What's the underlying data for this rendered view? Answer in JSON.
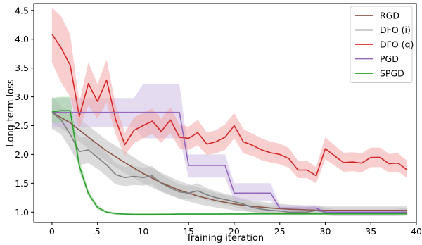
{
  "chart_data": {
    "type": "line",
    "title": "",
    "xlabel": "Training iteration",
    "ylabel": "Long-term loss",
    "xlim": [
      -2,
      40
    ],
    "ylim": [
      0.82,
      4.62
    ],
    "x_ticks": [
      "0",
      "5",
      "10",
      "15",
      "20",
      "25",
      "30",
      "35",
      "40"
    ],
    "y_ticks": [
      "1.0",
      "1.5",
      "2.0",
      "2.5",
      "3.0",
      "3.5",
      "4.0",
      "4.5"
    ],
    "grid": false,
    "legend_position": "top-right",
    "series": [
      {
        "name": "RGD",
        "color": "#8c564b",
        "band_color": "#bdbdbd",
        "x": [
          0,
          2,
          4,
          6,
          8,
          10,
          12,
          14,
          16,
          18,
          20,
          22,
          24,
          26,
          28,
          30,
          32,
          34,
          36,
          38,
          39
        ],
        "values": [
          2.73,
          2.55,
          2.3,
          2.06,
          1.86,
          1.67,
          1.51,
          1.38,
          1.28,
          1.2,
          1.14,
          1.1,
          1.07,
          1.05,
          1.04,
          1.03,
          1.03,
          1.03,
          1.03,
          1.03,
          1.03
        ],
        "lower": [
          2.55,
          2.35,
          2.1,
          1.88,
          1.68,
          1.5,
          1.35,
          1.23,
          1.14,
          1.08,
          1.03,
          1.0,
          0.98,
          0.97,
          0.96,
          0.96,
          0.96,
          0.96,
          0.96,
          0.96,
          0.96
        ],
        "upper": [
          2.9,
          2.75,
          2.5,
          2.25,
          2.05,
          1.85,
          1.68,
          1.54,
          1.43,
          1.33,
          1.26,
          1.2,
          1.16,
          1.13,
          1.11,
          1.1,
          1.1,
          1.1,
          1.1,
          1.1,
          1.1
        ]
      },
      {
        "name": "DFO (i)",
        "color": "#7f7f7f",
        "band_color": "#bdbdbd",
        "x": [
          0,
          1,
          2,
          3,
          4,
          5,
          6,
          7,
          8,
          9,
          10,
          11,
          12,
          13,
          14,
          15,
          16,
          17,
          18,
          19,
          20,
          21,
          22,
          23,
          24,
          25,
          26,
          27,
          28,
          29,
          30,
          31,
          32,
          33,
          34,
          35,
          36,
          37,
          38,
          39
        ],
        "values": [
          2.73,
          2.6,
          2.35,
          2.05,
          2.08,
          1.95,
          1.82,
          1.65,
          1.6,
          1.62,
          1.6,
          1.63,
          1.5,
          1.42,
          1.35,
          1.33,
          1.37,
          1.3,
          1.25,
          1.22,
          1.18,
          1.14,
          1.08,
          1.05,
          1.03,
          1.02,
          1.0,
          1.0,
          1.0,
          1.03,
          1.0,
          0.98,
          0.98,
          0.98,
          0.98,
          0.98,
          0.98,
          0.98,
          0.98,
          0.99
        ],
        "lower": [
          2.45,
          2.35,
          2.1,
          1.82,
          1.85,
          1.75,
          1.62,
          1.48,
          1.45,
          1.47,
          1.46,
          1.48,
          1.36,
          1.3,
          1.24,
          1.22,
          1.25,
          1.2,
          1.16,
          1.13,
          1.09,
          1.05,
          1.0,
          0.98,
          0.96,
          0.95,
          0.94,
          0.94,
          0.94,
          0.96,
          0.94,
          0.93,
          0.93,
          0.93,
          0.93,
          0.93,
          0.93,
          0.93,
          0.93,
          0.94
        ],
        "upper": [
          3.0,
          2.85,
          2.6,
          2.3,
          2.3,
          2.18,
          2.03,
          1.85,
          1.78,
          1.8,
          1.77,
          1.8,
          1.66,
          1.56,
          1.48,
          1.45,
          1.5,
          1.42,
          1.36,
          1.32,
          1.28,
          1.23,
          1.17,
          1.13,
          1.11,
          1.1,
          1.08,
          1.08,
          1.08,
          1.11,
          1.08,
          1.05,
          1.05,
          1.05,
          1.05,
          1.05,
          1.05,
          1.05,
          1.06,
          1.07
        ]
      },
      {
        "name": "DFO (q)",
        "color": "#d62728",
        "band_color": "#f2a5a5",
        "x": [
          0,
          1,
          2,
          3,
          4,
          5,
          6,
          7,
          8,
          9,
          10,
          11,
          12,
          13,
          14,
          15,
          16,
          17,
          18,
          19,
          20,
          21,
          22,
          23,
          24,
          25,
          26,
          27,
          28,
          29,
          30,
          31,
          32,
          33,
          34,
          35,
          36,
          37,
          38,
          39
        ],
        "values": [
          4.09,
          3.85,
          3.55,
          2.66,
          3.23,
          2.92,
          3.29,
          2.6,
          2.17,
          2.42,
          2.5,
          2.58,
          2.4,
          2.6,
          2.3,
          2.28,
          2.38,
          2.18,
          2.22,
          2.3,
          2.5,
          2.22,
          2.16,
          2.08,
          2.03,
          2.0,
          1.93,
          1.73,
          1.73,
          1.63,
          2.1,
          1.98,
          1.86,
          1.87,
          1.85,
          1.95,
          1.95,
          1.84,
          1.85,
          1.73
        ],
        "lower": [
          3.6,
          3.25,
          3.0,
          2.45,
          2.85,
          2.62,
          2.9,
          2.35,
          1.98,
          2.2,
          2.28,
          2.36,
          2.2,
          2.38,
          2.1,
          2.08,
          2.16,
          1.99,
          2.02,
          2.08,
          2.28,
          2.02,
          1.98,
          1.9,
          1.86,
          1.83,
          1.77,
          1.59,
          1.59,
          1.5,
          1.92,
          1.81,
          1.7,
          1.71,
          1.69,
          1.78,
          1.78,
          1.69,
          1.7,
          1.59
        ],
        "upper": [
          4.55,
          4.4,
          4.08,
          2.9,
          3.6,
          3.22,
          3.65,
          2.85,
          2.38,
          2.64,
          2.72,
          2.8,
          2.62,
          2.82,
          2.52,
          2.48,
          2.6,
          2.38,
          2.42,
          2.52,
          2.72,
          2.44,
          2.36,
          2.28,
          2.22,
          2.19,
          2.11,
          1.89,
          1.89,
          1.78,
          2.3,
          2.16,
          2.03,
          2.04,
          2.02,
          2.12,
          2.12,
          2.01,
          2.02,
          1.89
        ]
      },
      {
        "name": "PGD",
        "color": "#9467bd",
        "band_color": "#cfbde6",
        "x": [
          0,
          1,
          2,
          3,
          4,
          5,
          6,
          7,
          8,
          9,
          10,
          11,
          12,
          13,
          14,
          15,
          16,
          17,
          18,
          19,
          20,
          21,
          22,
          23,
          24,
          25,
          26,
          27,
          28,
          29,
          30,
          31,
          32,
          33,
          34,
          35,
          36,
          37,
          38,
          39
        ],
        "values": [
          2.73,
          2.73,
          2.73,
          2.73,
          2.73,
          2.73,
          2.73,
          2.73,
          2.73,
          2.73,
          2.73,
          2.73,
          2.73,
          2.73,
          2.73,
          1.81,
          1.81,
          1.81,
          1.81,
          1.81,
          1.33,
          1.33,
          1.33,
          1.33,
          1.33,
          1.07,
          1.07,
          1.07,
          1.07,
          1.07,
          1.0,
          1.0,
          1.0,
          1.0,
          1.0,
          1.0,
          1.0,
          1.0,
          1.0,
          1.0
        ],
        "lower": [
          2.48,
          2.48,
          2.48,
          2.48,
          2.48,
          2.48,
          2.48,
          2.48,
          2.48,
          2.48,
          2.28,
          2.28,
          2.28,
          2.28,
          2.28,
          1.6,
          1.6,
          1.6,
          1.6,
          1.6,
          1.2,
          1.2,
          1.2,
          1.2,
          1.2,
          1.01,
          1.01,
          1.01,
          1.01,
          1.01,
          0.96,
          0.96,
          0.96,
          0.96,
          0.96,
          0.96,
          0.96,
          0.96,
          0.96,
          0.96
        ],
        "upper": [
          2.98,
          2.98,
          2.98,
          2.98,
          2.98,
          2.98,
          2.98,
          2.98,
          2.98,
          2.98,
          3.22,
          3.22,
          3.22,
          3.22,
          3.22,
          2.0,
          2.0,
          2.0,
          2.0,
          2.0,
          1.5,
          1.5,
          1.5,
          1.5,
          1.5,
          1.12,
          1.12,
          1.12,
          1.12,
          1.12,
          1.04,
          1.04,
          1.04,
          1.04,
          1.04,
          1.04,
          1.04,
          1.04,
          1.04,
          1.04
        ]
      },
      {
        "name": "SPGD",
        "color": "#2ca02c",
        "band_color": "#9fd49f",
        "x": [
          0,
          1,
          2,
          3,
          4,
          5,
          6,
          7,
          8,
          9,
          10,
          11,
          12,
          13,
          14,
          15,
          16,
          17,
          18,
          19,
          20,
          21,
          22,
          23,
          24,
          25,
          26,
          27,
          28,
          29,
          30,
          31,
          32,
          33,
          34,
          35,
          36,
          37,
          38,
          39
        ],
        "values": [
          2.74,
          2.76,
          2.76,
          1.8,
          1.32,
          1.08,
          1.0,
          0.975,
          0.965,
          0.96,
          0.96,
          0.96,
          0.962,
          0.962,
          0.965,
          0.965,
          0.965,
          0.966,
          0.966,
          0.968,
          0.968,
          0.968,
          0.97,
          0.97,
          0.97,
          0.97,
          0.97,
          0.97,
          0.97,
          0.97,
          0.97,
          0.97,
          0.97,
          0.97,
          0.97,
          0.97,
          0.97,
          0.97,
          0.97,
          0.97
        ],
        "lower": [
          2.55,
          2.55,
          2.58,
          1.7,
          1.27,
          1.05,
          0.98,
          0.955,
          0.945,
          0.94,
          0.94,
          0.94,
          0.942,
          0.942,
          0.945,
          0.945,
          0.945,
          0.946,
          0.946,
          0.948,
          0.948,
          0.948,
          0.95,
          0.95,
          0.95,
          0.95,
          0.95,
          0.95,
          0.95,
          0.95,
          0.95,
          0.95,
          0.95,
          0.95,
          0.95,
          0.95,
          0.95,
          0.95,
          0.95,
          0.95
        ],
        "upper": [
          2.98,
          3.0,
          3.0,
          1.92,
          1.38,
          1.12,
          1.02,
          0.995,
          0.985,
          0.98,
          0.98,
          0.98,
          0.982,
          0.982,
          0.985,
          0.985,
          0.985,
          0.986,
          0.986,
          0.988,
          0.988,
          0.988,
          0.99,
          0.99,
          0.99,
          0.99,
          0.99,
          0.99,
          0.99,
          0.99,
          0.99,
          0.99,
          0.99,
          0.99,
          0.99,
          0.99,
          0.99,
          0.99,
          0.99,
          0.99
        ]
      }
    ]
  }
}
